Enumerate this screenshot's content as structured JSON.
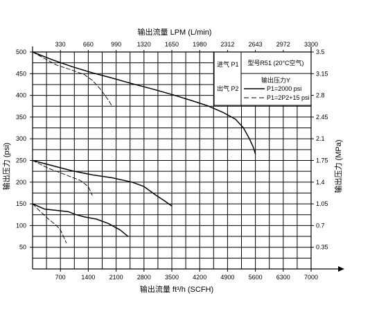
{
  "chart_data": {
    "type": "line",
    "grid": true,
    "top_axis": {
      "label": "输出流量 LPM (L/min)",
      "ticks": [
        "330",
        "660",
        "990",
        "1320",
        "1650",
        "1980",
        "2312",
        "2643",
        "2972",
        "3300"
      ],
      "xlim": [
        0,
        3300
      ]
    },
    "bottom_axis": {
      "label": "输出流量 ft³/h (SCFH)",
      "ticks": [
        "700",
        "1400",
        "2100",
        "2800",
        "3500",
        "4200",
        "4900",
        "5600",
        "6300",
        "7000"
      ],
      "xlim": [
        0,
        7000
      ]
    },
    "left_axis": {
      "label": "输出压力 (psi)",
      "ticks": [
        "50",
        "100",
        "150",
        "200",
        "250",
        "300",
        "350",
        "400",
        "450",
        "500"
      ],
      "ylim": [
        0,
        500
      ]
    },
    "right_axis": {
      "label": "输出压力 (MPa)",
      "ticks": [
        "0.35",
        "0.7",
        "1.05",
        "1.4",
        "1.75",
        "2.1",
        "2.45",
        "2.8",
        "3.15",
        "3.5"
      ],
      "ylim": [
        0,
        3.5
      ]
    },
    "legend": {
      "inlet_label": "进气 P1",
      "outlet_label": "出气 P2",
      "model": "型号R51 (20°C空气)",
      "heading": "输出压力Y",
      "entries": [
        "P1=2000 psi",
        "P1=2P2+15 psi"
      ]
    },
    "series": [
      {
        "style": "solid",
        "x": [
          0,
          500,
          1000,
          1500,
          2000,
          2500,
          3000,
          3500,
          4000,
          4400,
          4800,
          5100,
          5300,
          5450,
          5550,
          5600
        ],
        "y": [
          500,
          482,
          466,
          452,
          440,
          427,
          415,
          402,
          388,
          376,
          360,
          345,
          325,
          300,
          280,
          265
        ]
      },
      {
        "style": "dashed",
        "x": [
          0,
          300,
          600,
          1000,
          1300,
          1500,
          1700,
          1900,
          2000
        ],
        "y": [
          500,
          485,
          470,
          458,
          448,
          435,
          415,
          390,
          375
        ]
      },
      {
        "style": "solid",
        "x": [
          0,
          500,
          1000,
          1500,
          2000,
          2500,
          2800,
          3100,
          3300,
          3500
        ],
        "y": [
          250,
          238,
          226,
          217,
          210,
          200,
          190,
          170,
          158,
          145
        ]
      },
      {
        "style": "dashed",
        "x": [
          0,
          400,
          800,
          1200,
          1400,
          1500
        ],
        "y": [
          250,
          232,
          218,
          204,
          190,
          170
        ]
      },
      {
        "style": "solid",
        "x": [
          0,
          300,
          600,
          900,
          1100,
          1300,
          1600,
          1900,
          2200,
          2400
        ],
        "y": [
          150,
          138,
          135,
          132,
          125,
          120,
          115,
          105,
          90,
          75
        ]
      },
      {
        "style": "dashed",
        "x": [
          0,
          200,
          400,
          600,
          700,
          750,
          800,
          850
        ],
        "y": [
          150,
          132,
          115,
          100,
          90,
          80,
          70,
          60
        ]
      }
    ]
  }
}
